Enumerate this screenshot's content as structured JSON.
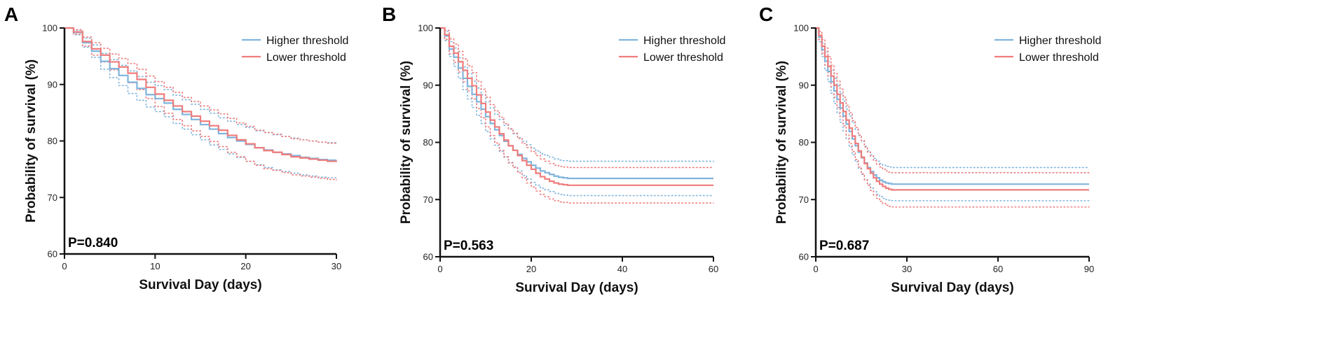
{
  "colors": {
    "higher": "#7fb4dd",
    "lower": "#ef7c7c",
    "axis": "#111111"
  },
  "chart_data": [
    {
      "type": "line",
      "panel": "A",
      "xlabel": "Survival Day (days)",
      "ylabel": "Probability of survival (%)",
      "xlim": [
        0,
        30
      ],
      "ylim": [
        60,
        100
      ],
      "xticks": [
        0,
        10,
        20,
        30
      ],
      "yticks": [
        60,
        70,
        80,
        90,
        100
      ],
      "p_value_label": "P=0.840",
      "legend_position": "top-right",
      "series": [
        {
          "name": "Higher threshold",
          "x": [
            0,
            1,
            2,
            3,
            4,
            5,
            6,
            7,
            8,
            9,
            10,
            11,
            12,
            13,
            14,
            15,
            16,
            17,
            18,
            19,
            20,
            21,
            22,
            23,
            24,
            25,
            26,
            27,
            28,
            29,
            30
          ],
          "y": [
            100,
            99.2,
            97.4,
            95.9,
            94.1,
            92.8,
            91.6,
            90.4,
            89.3,
            88.2,
            87.5,
            86.7,
            85.6,
            84.7,
            83.8,
            82.9,
            82.1,
            81.3,
            80.6,
            80.0,
            79.4,
            78.8,
            78.4,
            78.0,
            77.7,
            77.4,
            77.1,
            76.9,
            76.7,
            76.6,
            76.6
          ],
          "lower_ci": [
            100,
            98.8,
            96.6,
            94.8,
            92.7,
            91.2,
            89.8,
            88.4,
            87.2,
            86.0,
            85.2,
            84.3,
            83.1,
            82.1,
            81.1,
            80.2,
            79.3,
            78.5,
            77.7,
            77.1,
            76.4,
            75.8,
            75.3,
            74.9,
            74.6,
            74.3,
            74.0,
            73.8,
            73.6,
            73.5,
            73.5
          ],
          "upper_ci": [
            100,
            99.6,
            98.2,
            97.0,
            95.5,
            94.4,
            93.4,
            92.4,
            91.4,
            90.4,
            89.8,
            89.1,
            88.1,
            87.3,
            86.5,
            85.6,
            84.9,
            84.1,
            83.5,
            82.9,
            82.4,
            81.8,
            81.5,
            81.1,
            80.8,
            80.5,
            80.2,
            80.0,
            79.8,
            79.7,
            79.7
          ]
        },
        {
          "name": "Lower threshold",
          "x": [
            0,
            1,
            2,
            3,
            4,
            5,
            6,
            7,
            8,
            9,
            10,
            11,
            12,
            13,
            14,
            15,
            16,
            17,
            18,
            19,
            20,
            21,
            22,
            23,
            24,
            25,
            26,
            27,
            28,
            29,
            30
          ],
          "y": [
            100,
            99.3,
            97.6,
            96.3,
            95.2,
            94.0,
            93.1,
            92.0,
            90.9,
            89.5,
            88.3,
            87.2,
            86.2,
            85.2,
            84.4,
            83.5,
            82.7,
            81.9,
            81.0,
            80.2,
            79.5,
            78.8,
            78.3,
            78.0,
            77.6,
            77.2,
            77.0,
            76.8,
            76.6,
            76.4,
            76.3
          ],
          "lower_ci": [
            100,
            98.9,
            96.8,
            95.2,
            94.0,
            92.6,
            91.6,
            90.3,
            89.1,
            87.5,
            86.1,
            84.9,
            83.8,
            82.7,
            81.8,
            80.8,
            79.9,
            79.0,
            78.0,
            77.2,
            76.4,
            75.7,
            75.1,
            74.8,
            74.4,
            74.0,
            73.8,
            73.6,
            73.4,
            73.2,
            73.1
          ],
          "upper_ci": [
            100,
            99.7,
            98.4,
            97.4,
            96.4,
            95.4,
            94.6,
            93.7,
            92.7,
            91.5,
            90.5,
            89.5,
            88.6,
            87.7,
            87.0,
            86.2,
            85.5,
            84.8,
            84.0,
            83.2,
            82.6,
            81.9,
            81.5,
            81.2,
            80.8,
            80.4,
            80.2,
            80.0,
            79.8,
            79.6,
            79.5
          ]
        }
      ]
    },
    {
      "type": "line",
      "panel": "B",
      "xlabel": "Survival Day (days)",
      "ylabel": "Probability of survival (%)",
      "xlim": [
        0,
        60
      ],
      "ylim": [
        60,
        100
      ],
      "xticks": [
        0,
        20,
        40,
        60
      ],
      "yticks": [
        60,
        70,
        80,
        90,
        100
      ],
      "p_value_label": "P=0.563",
      "legend_position": "top-right",
      "series": [
        {
          "name": "Higher threshold",
          "x": [
            0,
            1,
            2,
            3,
            4,
            5,
            6,
            7,
            8,
            9,
            10,
            11,
            12,
            13,
            14,
            15,
            16,
            17,
            18,
            19,
            20,
            21,
            22,
            23,
            24,
            25,
            26,
            27,
            28,
            29,
            30,
            60
          ],
          "y": [
            100,
            98.6,
            96.3,
            94.9,
            93.0,
            91.2,
            89.8,
            88.4,
            87.1,
            85.8,
            84.5,
            83.3,
            82.2,
            81.2,
            80.2,
            79.4,
            78.6,
            77.9,
            77.2,
            76.6,
            76.0,
            75.5,
            75.0,
            74.7,
            74.4,
            74.1,
            73.9,
            73.8,
            73.7,
            73.7,
            73.7,
            73.7
          ],
          "lower_ci": [
            100,
            97.8,
            95.0,
            93.3,
            91.2,
            89.2,
            87.6,
            86.1,
            84.7,
            83.3,
            81.9,
            80.6,
            79.5,
            78.4,
            77.4,
            76.5,
            75.7,
            75.0,
            74.2,
            73.6,
            73.0,
            72.5,
            72.0,
            71.7,
            71.4,
            71.1,
            70.9,
            70.8,
            70.7,
            70.7,
            70.7,
            70.7
          ],
          "upper_ci": [
            100,
            99.4,
            97.6,
            96.5,
            94.8,
            93.2,
            92.0,
            90.7,
            89.5,
            88.3,
            87.1,
            86.0,
            84.9,
            84.0,
            83.0,
            82.3,
            81.5,
            80.8,
            80.2,
            79.6,
            79.0,
            78.5,
            78.0,
            77.7,
            77.4,
            77.1,
            76.9,
            76.8,
            76.7,
            76.7,
            76.7,
            76.7
          ]
        },
        {
          "name": "Lower threshold",
          "x": [
            0,
            1,
            2,
            3,
            4,
            5,
            6,
            7,
            8,
            9,
            10,
            11,
            12,
            13,
            14,
            15,
            16,
            17,
            18,
            19,
            20,
            21,
            22,
            23,
            24,
            25,
            26,
            27,
            28,
            29,
            30,
            60
          ],
          "y": [
            100,
            98.8,
            96.8,
            95.6,
            94.1,
            92.6,
            91.2,
            89.9,
            88.3,
            86.8,
            85.3,
            83.9,
            82.7,
            81.5,
            80.4,
            79.4,
            78.6,
            77.7,
            76.8,
            76.0,
            75.3,
            74.6,
            74.0,
            73.6,
            73.2,
            72.9,
            72.7,
            72.6,
            72.5,
            72.5,
            72.5,
            72.5
          ],
          "lower_ci": [
            100,
            98.0,
            95.5,
            94.0,
            92.3,
            90.6,
            89.0,
            87.6,
            85.9,
            84.3,
            82.7,
            81.2,
            79.9,
            78.6,
            77.5,
            76.4,
            75.6,
            74.7,
            73.8,
            72.9,
            72.2,
            71.5,
            70.9,
            70.5,
            70.1,
            69.8,
            69.6,
            69.5,
            69.4,
            69.4,
            69.4,
            69.4
          ],
          "upper_ci": [
            100,
            99.6,
            98.1,
            97.2,
            95.9,
            94.6,
            93.4,
            92.2,
            90.7,
            89.3,
            87.9,
            86.6,
            85.5,
            84.4,
            83.3,
            82.4,
            81.6,
            80.7,
            79.8,
            79.1,
            78.4,
            77.7,
            77.1,
            76.7,
            76.3,
            76.0,
            75.8,
            75.7,
            75.6,
            75.6,
            75.6,
            75.6
          ]
        }
      ]
    },
    {
      "type": "line",
      "panel": "C",
      "xlabel": "Survival Day (days)",
      "ylabel": "Probability of survival (%)",
      "xlim": [
        0,
        90
      ],
      "ylim": [
        60,
        100
      ],
      "xticks": [
        0,
        30,
        60,
        90
      ],
      "yticks": [
        60,
        70,
        80,
        90,
        100
      ],
      "p_value_label": "P=0.687",
      "legend_position": "top-right",
      "series": [
        {
          "name": "Higher threshold",
          "x": [
            0,
            1,
            2,
            3,
            4,
            5,
            6,
            7,
            8,
            9,
            10,
            11,
            12,
            13,
            14,
            15,
            16,
            17,
            18,
            19,
            20,
            21,
            22,
            23,
            24,
            25,
            26,
            27,
            28,
            29,
            30,
            90
          ],
          "y": [
            100,
            98.4,
            96.2,
            94.2,
            92.4,
            90.6,
            89.0,
            87.5,
            86.0,
            84.6,
            83.2,
            81.9,
            80.6,
            79.4,
            78.3,
            77.3,
            76.4,
            75.6,
            74.9,
            74.3,
            73.8,
            73.4,
            73.1,
            72.9,
            72.8,
            72.7,
            72.7,
            72.7,
            72.7,
            72.7,
            72.7,
            72.7
          ],
          "lower_ci": [
            100,
            97.6,
            95.0,
            92.6,
            90.6,
            88.6,
            86.8,
            85.1,
            83.5,
            82.0,
            80.6,
            79.2,
            77.8,
            76.6,
            75.4,
            74.4,
            73.5,
            72.7,
            72.0,
            71.4,
            70.9,
            70.5,
            70.2,
            70.0,
            69.9,
            69.8,
            69.8,
            69.8,
            69.8,
            69.8,
            69.8,
            69.8
          ],
          "upper_ci": [
            100,
            99.2,
            97.4,
            95.8,
            94.2,
            92.6,
            91.2,
            89.9,
            88.5,
            87.2,
            85.8,
            84.6,
            83.4,
            82.2,
            81.2,
            80.2,
            79.3,
            78.5,
            77.8,
            77.2,
            76.7,
            76.3,
            76.0,
            75.8,
            75.7,
            75.6,
            75.6,
            75.6,
            75.6,
            75.6,
            75.6,
            75.6
          ]
        },
        {
          "name": "Lower threshold",
          "x": [
            0,
            1,
            2,
            3,
            4,
            5,
            6,
            7,
            8,
            9,
            10,
            11,
            12,
            13,
            14,
            15,
            16,
            17,
            18,
            19,
            20,
            21,
            22,
            23,
            24,
            25,
            26,
            27,
            28,
            29,
            30,
            90
          ],
          "y": [
            100,
            98.7,
            96.8,
            95.0,
            93.3,
            91.6,
            90.0,
            88.4,
            86.9,
            85.4,
            83.9,
            82.5,
            81.1,
            79.8,
            78.5,
            77.4,
            76.3,
            75.4,
            74.6,
            73.8,
            73.2,
            72.7,
            72.3,
            72.0,
            71.8,
            71.7,
            71.7,
            71.7,
            71.7,
            71.7,
            71.7,
            71.7
          ],
          "lower_ci": [
            100,
            98.0,
            95.6,
            93.5,
            91.6,
            89.7,
            87.9,
            86.1,
            84.5,
            82.9,
            81.3,
            79.8,
            78.4,
            77.0,
            75.7,
            74.5,
            73.4,
            72.5,
            71.6,
            70.8,
            70.2,
            69.7,
            69.3,
            69.0,
            68.8,
            68.7,
            68.7,
            68.7,
            68.7,
            68.7,
            68.7,
            68.7
          ],
          "upper_ci": [
            100,
            99.4,
            98.0,
            96.5,
            95.0,
            93.5,
            92.1,
            90.7,
            89.3,
            87.9,
            86.5,
            85.2,
            83.8,
            82.6,
            81.3,
            80.3,
            79.2,
            78.3,
            77.6,
            76.8,
            76.2,
            75.7,
            75.3,
            75.0,
            74.8,
            74.7,
            74.7,
            74.7,
            74.7,
            74.7,
            74.7,
            74.7
          ]
        }
      ]
    }
  ]
}
